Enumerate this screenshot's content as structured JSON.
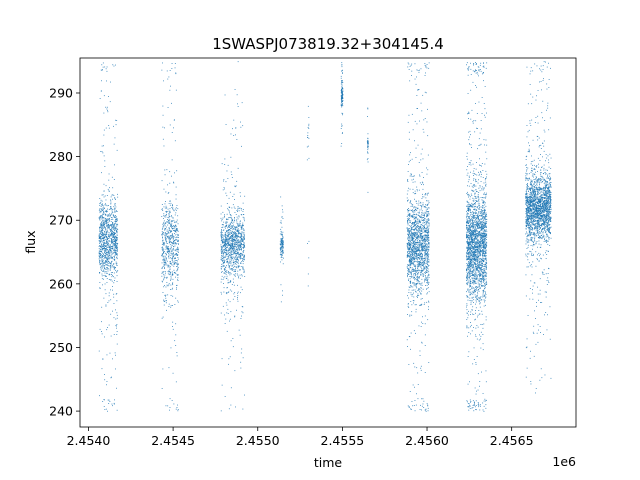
{
  "chart_data": {
    "type": "scatter",
    "title": "1SWASPJ073819.32+304145.4",
    "xlabel": "time",
    "ylabel": "flux",
    "x_offset_label": "1e6",
    "xlim": [
      2453950,
      2456880
    ],
    "ylim": [
      237.5,
      295.5
    ],
    "x_ticks": [
      2454000,
      2454500,
      2455000,
      2455500,
      2456000,
      2456500
    ],
    "x_tick_labels": [
      "2.4540",
      "2.4545",
      "2.4550",
      "2.4555",
      "2.4560",
      "2.4565"
    ],
    "y_ticks": [
      240,
      250,
      260,
      270,
      280,
      290
    ],
    "y_tick_labels": [
      "240",
      "250",
      "260",
      "270",
      "280",
      "290"
    ],
    "grid": false,
    "marker_color": "#1f77b4",
    "clusters": [
      {
        "x_start": 2454060,
        "x_end": 2454170,
        "center_flux": 267,
        "spread": 5,
        "n": 1100
      },
      {
        "x_start": 2454430,
        "x_end": 2454530,
        "center_flux": 266,
        "spread": 6,
        "n": 650
      },
      {
        "x_start": 2454780,
        "x_end": 2454920,
        "center_flux": 266,
        "spread": 4,
        "n": 1100
      },
      {
        "x_start": 2455130,
        "x_end": 2455150,
        "center_flux": 266,
        "spread": 1.5,
        "n": 120
      },
      {
        "x_start": 2455290,
        "x_end": 2455300,
        "center_flux": 285,
        "spread": 5,
        "n": 20
      },
      {
        "x_start": 2455490,
        "x_end": 2455500,
        "center_flux": 290,
        "spread": 1.5,
        "n": 120
      },
      {
        "x_start": 2455645,
        "x_end": 2455650,
        "center_flux": 282,
        "spread": 1,
        "n": 40
      },
      {
        "x_start": 2455880,
        "x_end": 2456010,
        "center_flux": 266,
        "spread": 6,
        "n": 1600
      },
      {
        "x_start": 2456230,
        "x_end": 2456350,
        "center_flux": 266,
        "spread": 7,
        "n": 2200
      },
      {
        "x_start": 2456580,
        "x_end": 2456730,
        "center_flux": 272,
        "spread": 4,
        "n": 2000
      }
    ]
  }
}
